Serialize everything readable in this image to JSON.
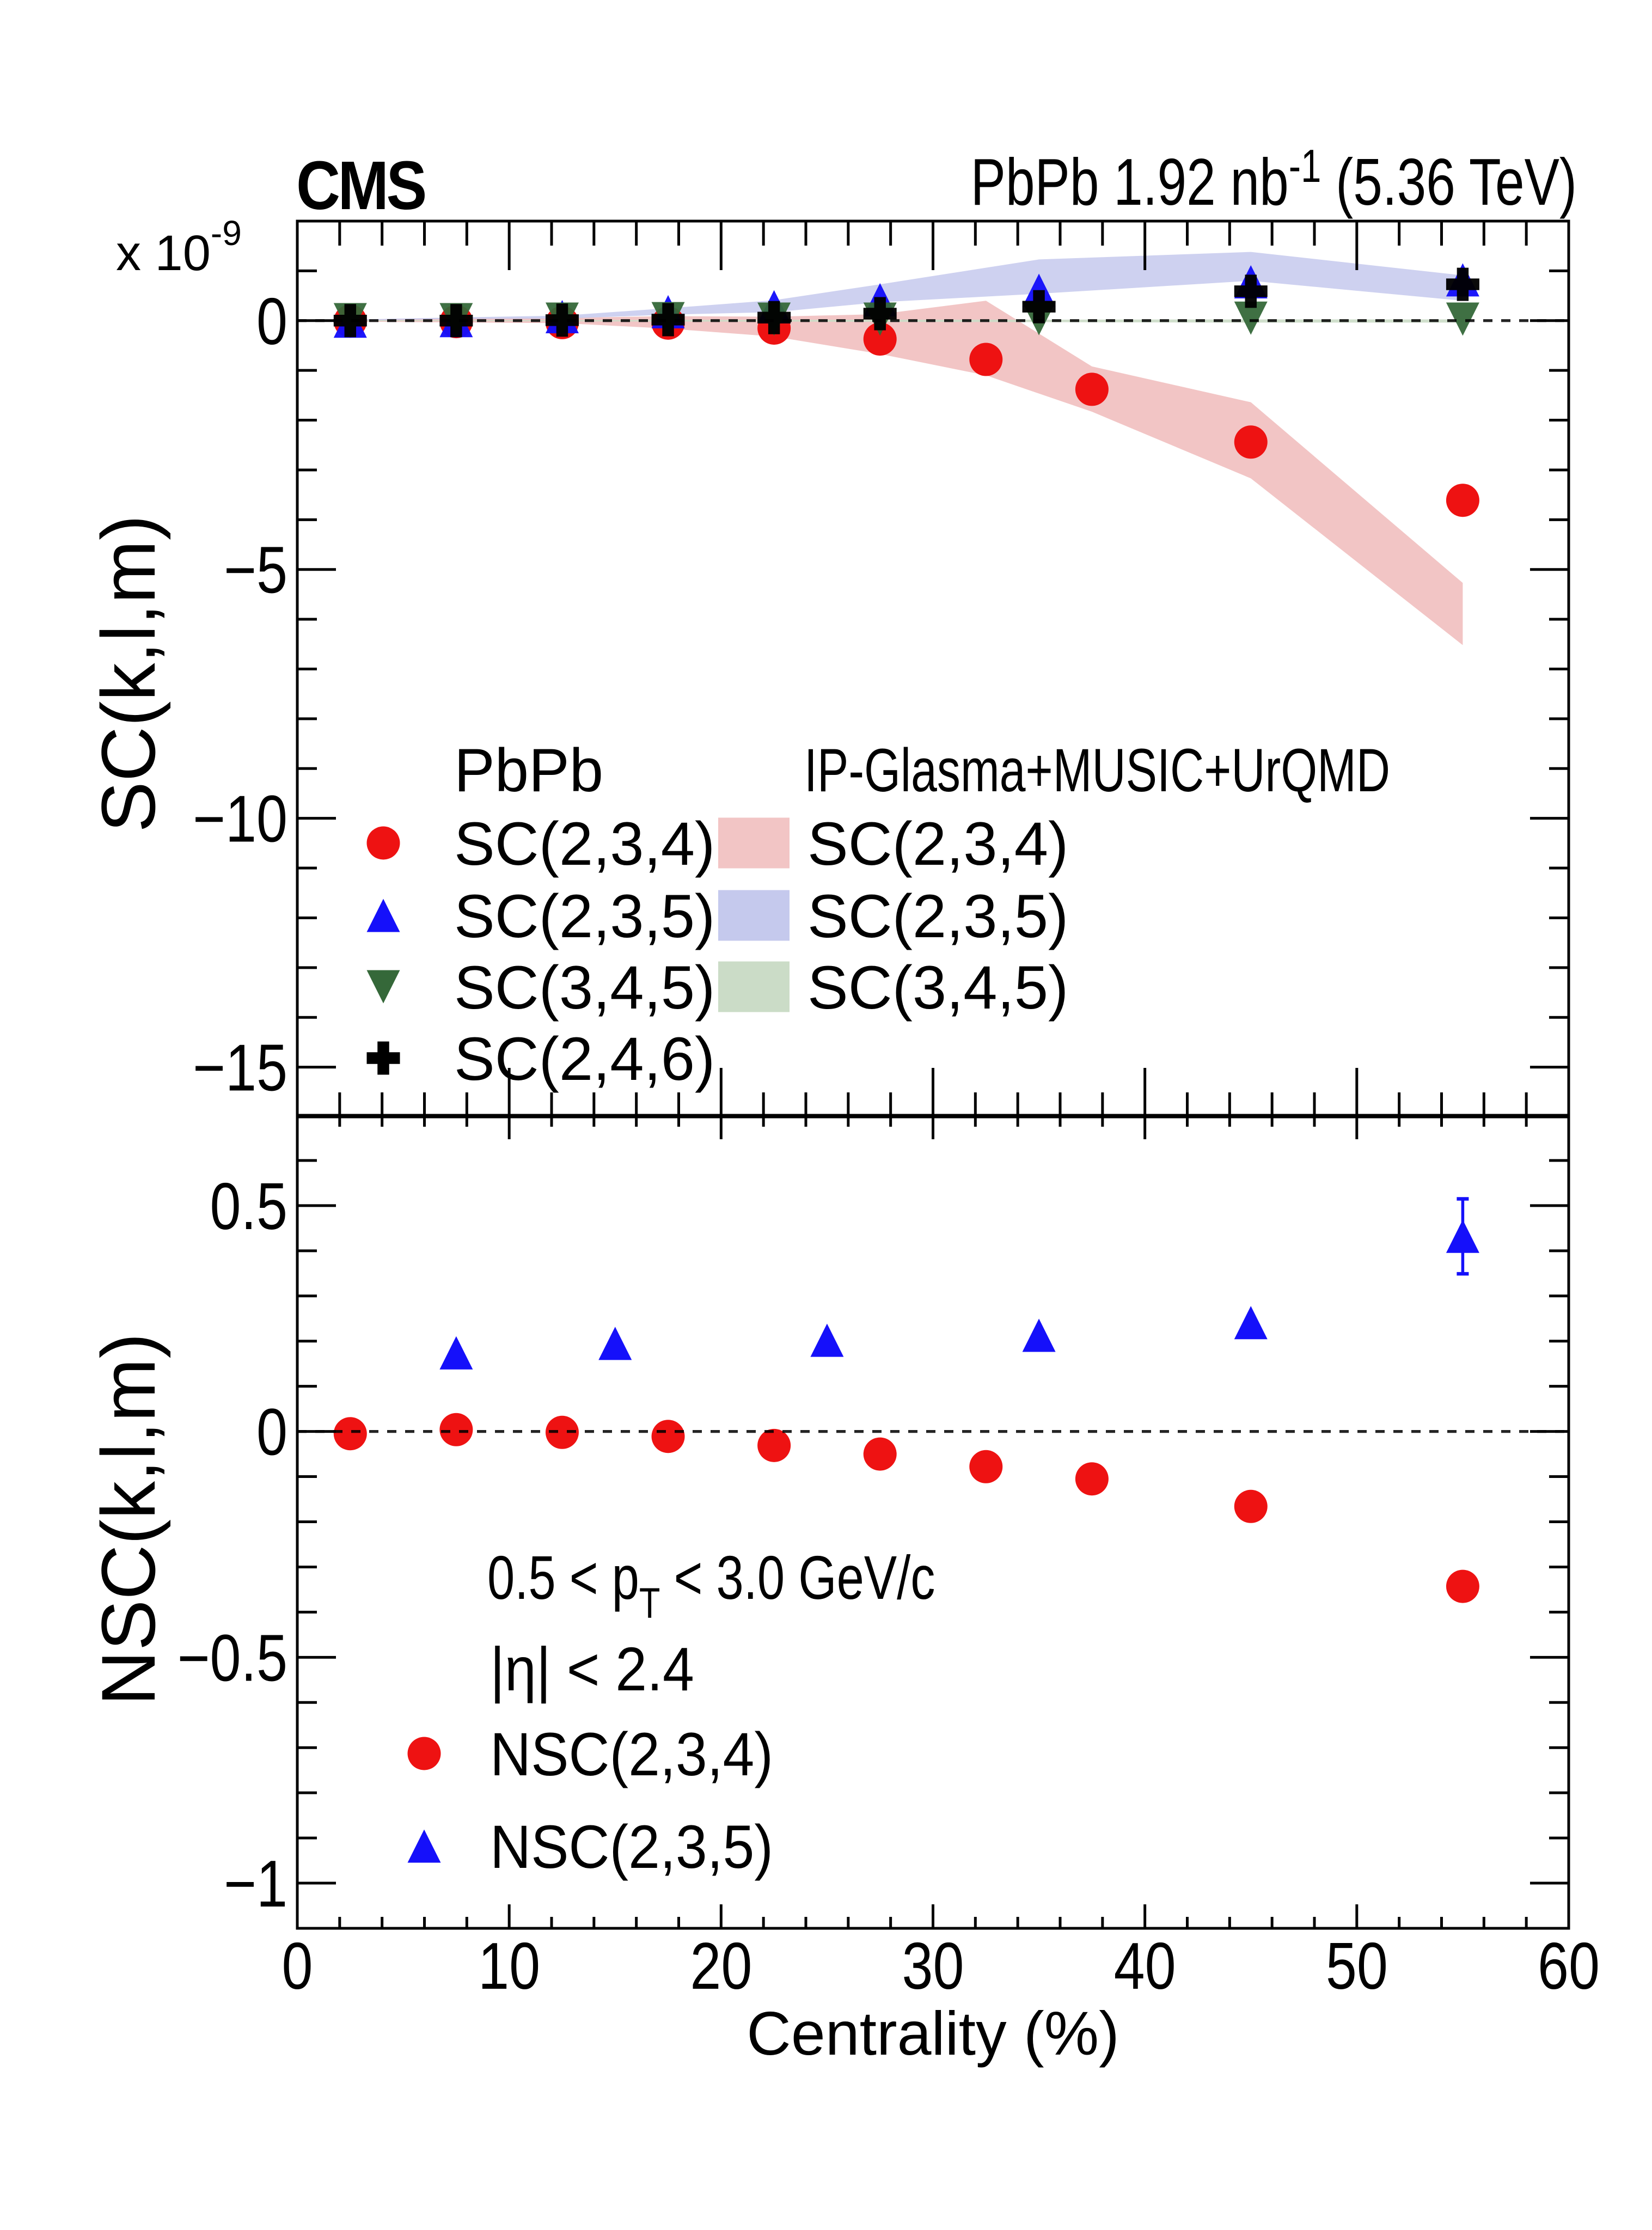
{
  "page": {
    "background": "#ffffff"
  },
  "header": {
    "experiment": "CMS",
    "lumi": {
      "prefix": "PbPb 1.92 nb",
      "sup": "-1",
      "suffix": " (5.36 TeV)"
    }
  },
  "colors": {
    "sc234": "#ee1212",
    "sc235": "#1510fa",
    "sc345": "#356839",
    "sc246": "#000000",
    "band_sc234": "#f2c5c5",
    "band_sc235": "#c5c9ed",
    "band_sc345": "#cbdcc7",
    "axis": "#000000"
  },
  "chart_data": [
    {
      "id": "top",
      "type": "scatter",
      "ylabel": "SC(k,l,m)",
      "y_scale_label": {
        "main": "x 10",
        "sup": "-9"
      },
      "xlim": [
        0,
        60
      ],
      "ylim": [
        -16,
        2
      ],
      "grid": false,
      "zero_line_dashed": true,
      "yticks": {
        "major": [
          0,
          -5,
          -10,
          -15
        ],
        "labels": [
          "0",
          "−5",
          "−10",
          "−15"
        ],
        "minor_step": 1
      },
      "xticks": {
        "major": [
          0,
          10,
          20,
          30,
          40,
          50,
          60
        ],
        "labels": [],
        "minor_step": 2,
        "show_labels": false
      },
      "bands": [
        {
          "name": "SC(2,3,4)",
          "color_key": "band_sc234",
          "opacity": 1.0,
          "x": [
            2.5,
            7.5,
            12.5,
            17.5,
            22.5,
            27.5,
            32.5,
            37.5,
            45,
            55
          ],
          "top": [
            0.02,
            0.055,
            0.055,
            0.09,
            0.08,
            0.13,
            0.4,
            -0.92,
            -1.64,
            -5.27
          ],
          "bottom": [
            -0.02,
            -0.035,
            -0.05,
            -0.16,
            -0.32,
            -0.67,
            -1.1,
            -1.83,
            -3.17,
            -6.52
          ]
        },
        {
          "name": "SC(2,3,5)",
          "color_key": "band_sc235",
          "opacity": 0.85,
          "x": [
            2.5,
            7.5,
            12.5,
            17.5,
            22.5,
            27.5,
            35,
            45,
            55
          ],
          "top": [
            0.02,
            0.065,
            0.1,
            0.25,
            0.41,
            0.73,
            1.23,
            1.38,
            0.91
          ],
          "bottom": [
            0.0,
            0.035,
            0.04,
            0.12,
            0.17,
            0.37,
            0.54,
            0.8,
            0.4
          ]
        },
        {
          "name": "SC(3,4,5)",
          "color_key": "band_sc345",
          "opacity": 0.9,
          "x": [
            2.5,
            7.5,
            12.5,
            17.5,
            22.5,
            27.5,
            35,
            45,
            55
          ],
          "top": [
            0.01,
            0.01,
            0.01,
            0.015,
            0.015,
            0.02,
            0.02,
            0.025,
            0.025
          ],
          "bottom": [
            -0.01,
            -0.01,
            -0.015,
            -0.02,
            -0.02,
            -0.025,
            -0.03,
            -0.04,
            -0.04
          ]
        }
      ],
      "series": [
        {
          "name": "SC(2,3,4)",
          "marker": "circle",
          "color_key": "sc234",
          "opacity": 1.0,
          "x": [
            2.5,
            7.5,
            12.5,
            17.5,
            22.5,
            27.5,
            32.5,
            37.5,
            45,
            55
          ],
          "y": [
            -0.01,
            -0.02,
            -0.04,
            -0.05,
            -0.15,
            -0.37,
            -0.78,
            -1.38,
            -2.44,
            -3.61
          ]
        },
        {
          "name": "SC(2,3,5)",
          "marker": "triangle_up",
          "color_key": "sc235",
          "opacity": 0.97,
          "x": [
            2.5,
            7.5,
            12.5,
            17.5,
            22.5,
            27.5,
            35,
            45,
            55
          ],
          "y": [
            -0.01,
            0.0,
            0.08,
            0.18,
            0.28,
            0.42,
            0.61,
            0.78,
            0.82
          ]
        },
        {
          "name": "SC(3,4,5)",
          "marker": "triangle_down",
          "color_key": "sc345",
          "opacity": 0.95,
          "x": [
            2.5,
            7.5,
            12.5,
            17.5,
            22.5,
            27.5,
            35,
            45,
            55
          ],
          "y": [
            0.02,
            0.02,
            0.03,
            0.04,
            0.03,
            0.03,
            0.04,
            0.05,
            0.03
          ]
        },
        {
          "name": "SC(2,4,6)",
          "marker": "cross",
          "color_key": "sc246",
          "opacity": 0.96,
          "x": [
            2.5,
            7.5,
            12.5,
            17.5,
            22.5,
            27.5,
            35,
            45,
            55
          ],
          "y": [
            0.0,
            0.0,
            0.01,
            0.02,
            0.06,
            0.14,
            0.28,
            0.59,
            0.73
          ]
        }
      ],
      "legend": {
        "col1_header": "PbPb",
        "col2_header": "IP-Glasma+MUSIC+UrQMD",
        "col1": [
          {
            "marker": "circle",
            "color_key": "sc234",
            "label": "SC(2,3,4)"
          },
          {
            "marker": "triangle_up",
            "color_key": "sc235",
            "label": "SC(2,3,5)"
          },
          {
            "marker": "triangle_down",
            "color_key": "sc345",
            "label": "SC(3,4,5)"
          },
          {
            "marker": "cross",
            "color_key": "sc246",
            "label": "SC(2,4,6)"
          }
        ],
        "col2": [
          {
            "swatch_key": "band_sc234",
            "label": "SC(2,3,4)"
          },
          {
            "swatch_key": "band_sc235",
            "label": "SC(2,3,5)"
          },
          {
            "swatch_key": "band_sc345",
            "label": "SC(3,4,5)"
          }
        ]
      }
    },
    {
      "id": "bottom",
      "type": "scatter",
      "ylabel": "NSC(k,l,m)",
      "xlabel": "Centrality (%)",
      "xlim": [
        0,
        60
      ],
      "ylim": [
        -1.1,
        0.7
      ],
      "grid": false,
      "zero_line_dashed": true,
      "yticks": {
        "major": [
          0.5,
          0,
          -0.5,
          -1
        ],
        "labels": [
          "0.5",
          "0",
          "−0.5",
          "−1"
        ],
        "minor_step": 0.1
      },
      "xticks": {
        "major": [
          0,
          10,
          20,
          30,
          40,
          50,
          60
        ],
        "labels": [
          "0",
          "10",
          "20",
          "30",
          "40",
          "50",
          "60"
        ],
        "minor_step": 2,
        "show_labels": true
      },
      "bands": [],
      "series": [
        {
          "name": "NSC(2,3,4)",
          "marker": "circle",
          "color_key": "sc234",
          "opacity": 1.0,
          "x": [
            2.5,
            7.5,
            12.5,
            17.5,
            22.5,
            27.5,
            32.5,
            37.5,
            45,
            55
          ],
          "y": [
            -0.005,
            0.004,
            -0.002,
            -0.011,
            -0.031,
            -0.05,
            -0.078,
            -0.105,
            -0.166,
            -0.343
          ]
        },
        {
          "name": "NSC(2,3,5)",
          "marker": "triangle_up",
          "color_key": "sc235",
          "opacity": 1.0,
          "x": [
            7.5,
            15,
            25,
            35,
            45,
            55
          ],
          "y": [
            0.174,
            0.195,
            0.202,
            0.213,
            0.241,
            0.432
          ],
          "yerr_low": [
            0,
            0,
            0,
            0,
            0,
            0.083
          ],
          "yerr_high": [
            0,
            0,
            0,
            0,
            0,
            0.083
          ]
        }
      ],
      "annotations": [
        {
          "parts": [
            {
              "t": "0.5 < p"
            },
            {
              "t": "T",
              "sub": true
            },
            {
              "t": " < 3.0 GeV/c"
            }
          ]
        },
        {
          "parts": [
            {
              "t": "|η| < 2.4"
            }
          ]
        }
      ],
      "legend": [
        {
          "marker": "circle",
          "color_key": "sc234",
          "label": "NSC(2,3,4)"
        },
        {
          "marker": "triangle_up",
          "color_key": "sc235",
          "label": "NSC(2,3,5)"
        }
      ]
    }
  ]
}
